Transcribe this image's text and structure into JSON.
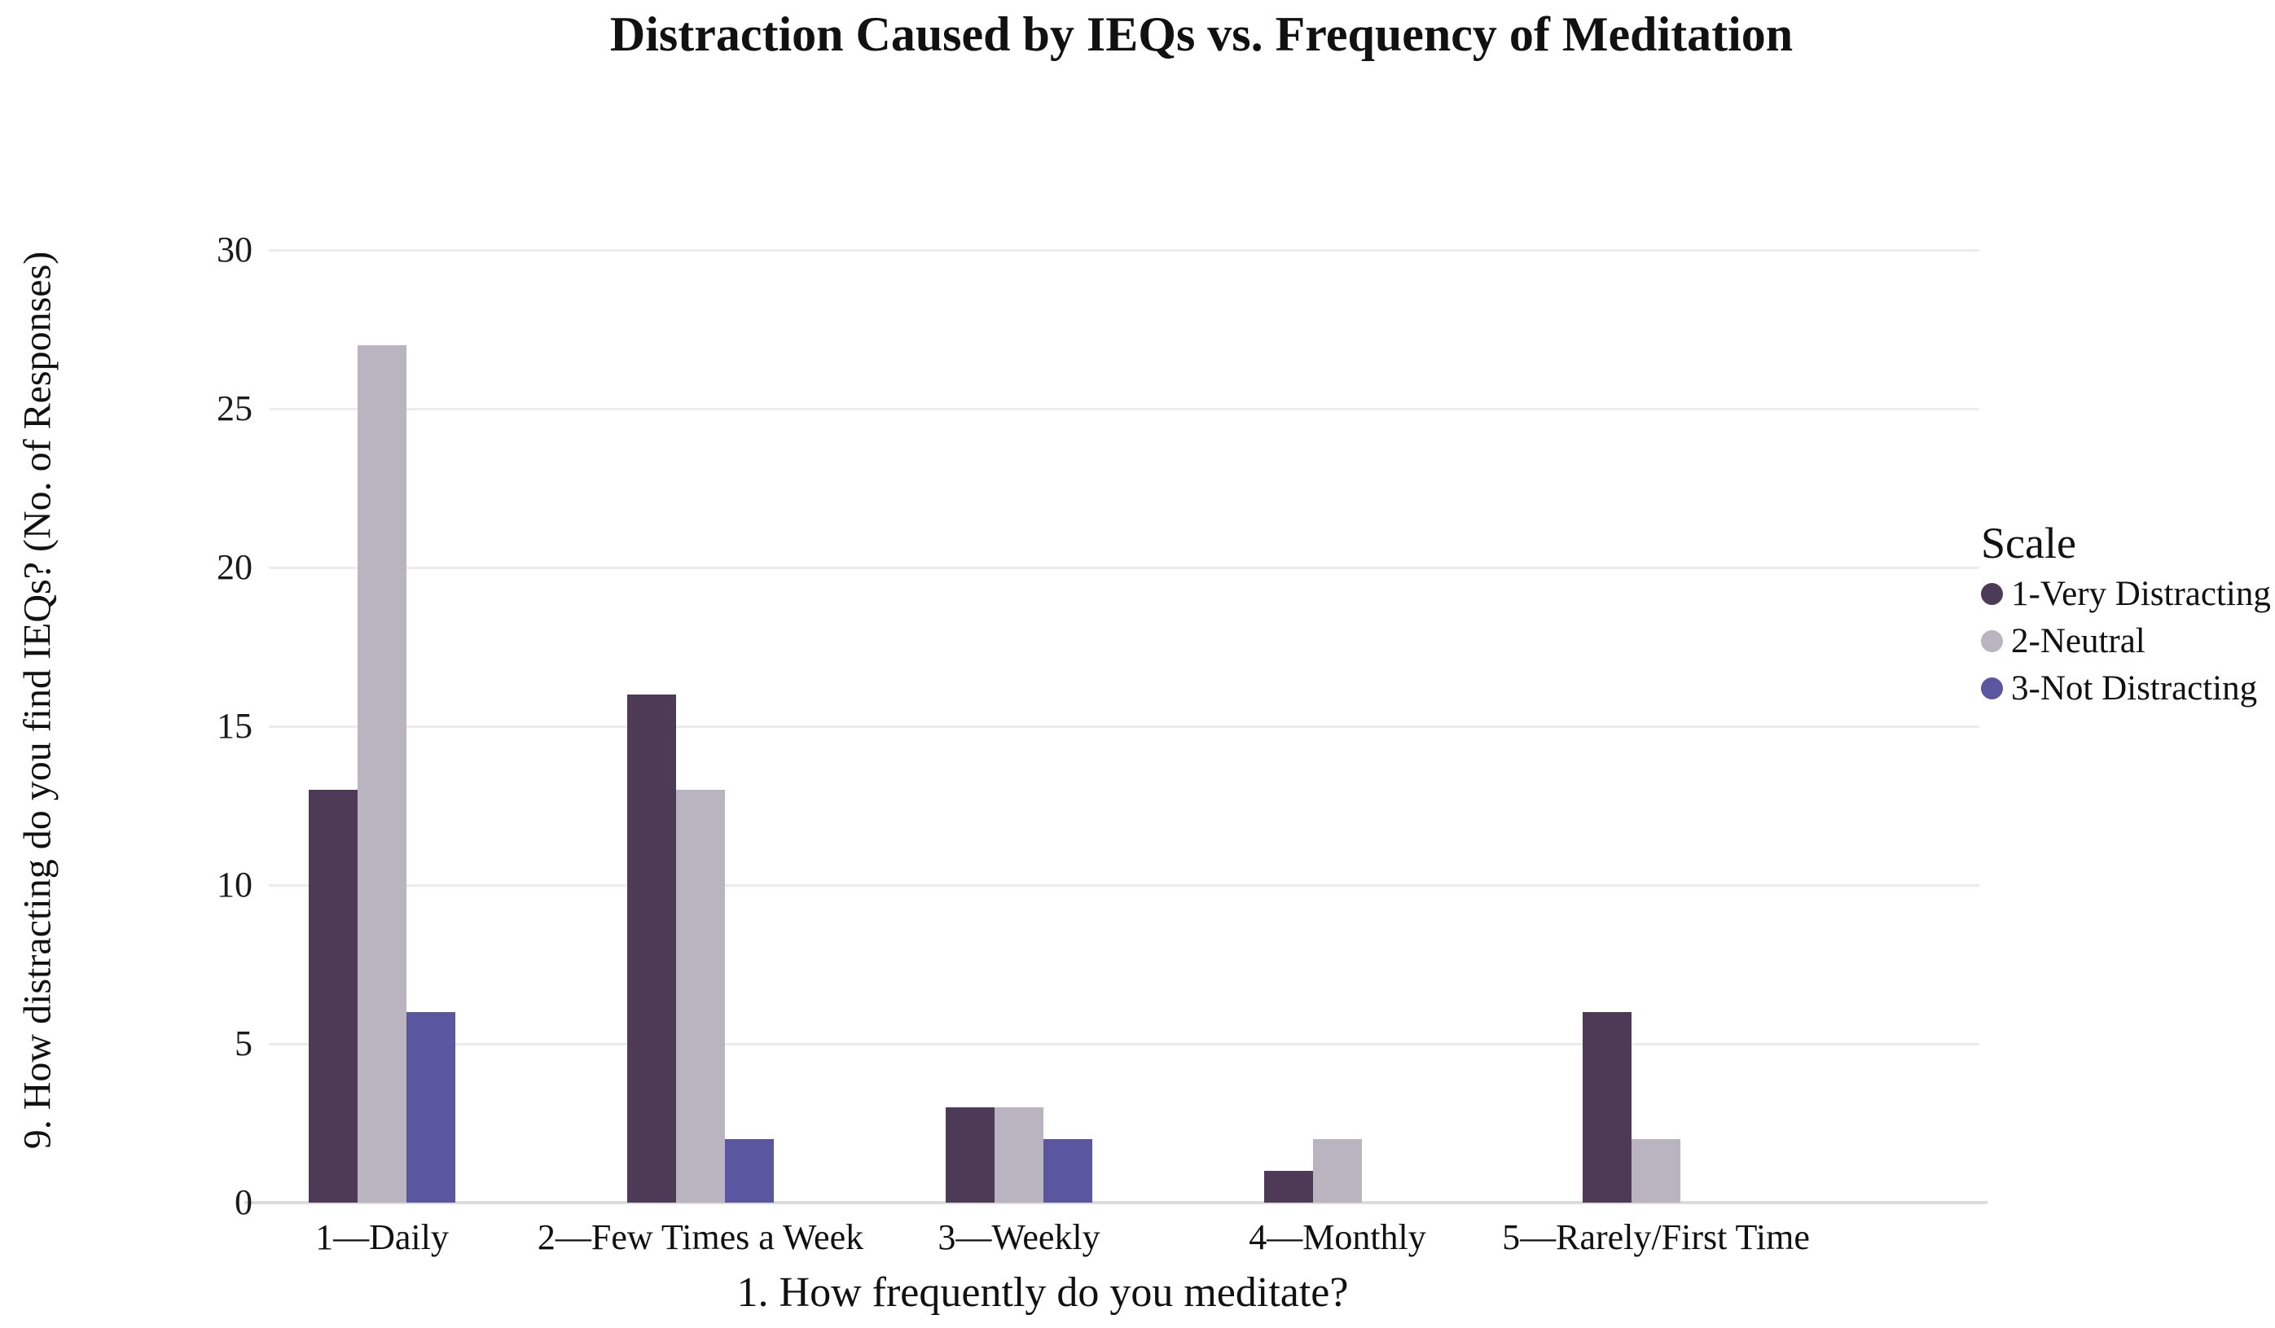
{
  "title": "Distraction Caused by IEQs vs. Frequency of Meditation",
  "legend": {
    "title": "Scale"
  },
  "chart_data": {
    "type": "bar",
    "title": "Distraction Caused by IEQs vs. Frequency of Meditation",
    "xlabel": "1. How frequently do you meditate?",
    "ylabel": "9. How distracting do you find IEQs? (No. of Responses)",
    "categories": [
      "1—Daily",
      "2—Few Times a Week",
      "3—Weekly",
      "4—Monthly",
      "5—Rarely/First Time"
    ],
    "series": [
      {
        "name": "1-Very Distracting",
        "color": "#4d3a57",
        "values": [
          13,
          16,
          3,
          1,
          6
        ]
      },
      {
        "name": "2-Neutral",
        "color": "#b9b4c0",
        "values": [
          27,
          13,
          3,
          2,
          2
        ]
      },
      {
        "name": "3-Not Distracting",
        "color": "#5a56a0",
        "values": [
          6,
          2,
          2,
          0,
          0
        ]
      }
    ],
    "ylim": [
      0,
      30
    ],
    "yticks": [
      0,
      5,
      10,
      15,
      20,
      25,
      30
    ],
    "grid": "horizontal",
    "legend_position": "right",
    "gridline_color": "#ececec",
    "baseline_color": "#dcdcdc",
    "background_color": "#ffffff"
  }
}
